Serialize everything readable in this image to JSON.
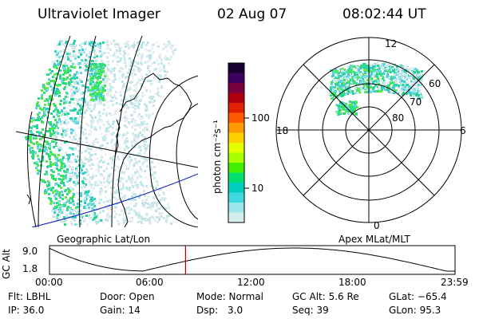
{
  "header": {
    "title": "Ultraviolet Imager",
    "date": "02 Aug 07",
    "time": "08:02:44 UT"
  },
  "colorbar": {
    "unit_label": "photon cm⁻²s⁻¹",
    "ticks": [
      "100",
      "10"
    ],
    "colors": [
      "#1a0030",
      "#3d0060",
      "#7a0040",
      "#b00010",
      "#e02000",
      "#ff5a00",
      "#ff9a00",
      "#ffd000",
      "#e6ff00",
      "#a8ff00",
      "#40f000",
      "#00e070",
      "#00d0c0",
      "#40d8e0",
      "#9ae4ea",
      "#d4ecec"
    ]
  },
  "left_panel": {
    "caption": "Geographic Lat/Lon"
  },
  "right_panel": {
    "caption": "Apex MLat/MLT",
    "mlt_labels": [
      "12",
      "18",
      "6",
      "0"
    ],
    "mlat_labels": [
      "60",
      "70",
      "80"
    ]
  },
  "timeline": {
    "ylabel": "GC Alt",
    "y_ticks": [
      "9.0",
      "1.8"
    ],
    "x_ticks": [
      "00:00",
      "06:00",
      "12:00",
      "18:00",
      "23:59"
    ],
    "marker_hour": 8.05,
    "marker_color": "#c00000"
  },
  "footer": {
    "row1": {
      "flt": "Flt: LBHL",
      "door": "Door: Open",
      "mode": "Mode: Normal",
      "gcalt": "GC Alt: 5.6 Re",
      "glat": "GLat: −65.4"
    },
    "row2": {
      "ip": "IP: 36.0",
      "gain": "Gain: 14",
      "dsp_label": "Dsp:",
      "dsp_value": "3.0",
      "seq": "Seq: 39",
      "glon": "GLon: 95.3"
    }
  }
}
